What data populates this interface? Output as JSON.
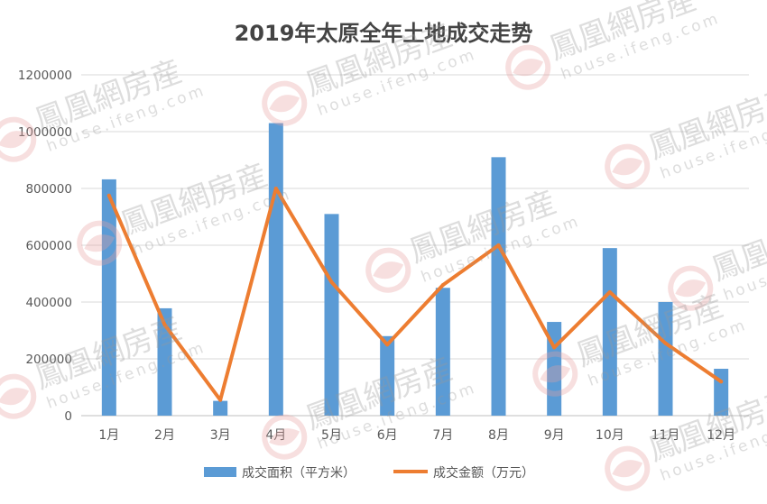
{
  "chart_data": {
    "type": "bar",
    "title": "2019年太原全年土地成交走势",
    "categories": [
      "1月",
      "2月",
      "3月",
      "4月",
      "5月",
      "6月",
      "7月",
      "8月",
      "9月",
      "10月",
      "11月",
      "12月"
    ],
    "series": [
      {
        "name": "成交面积（平方米）",
        "type": "bar",
        "color": "#5b9bd5",
        "values": [
          832000,
          378000,
          52000,
          1030000,
          710000,
          280000,
          450000,
          910000,
          330000,
          590000,
          400000,
          165000
        ]
      },
      {
        "name": "成交金额（万元）",
        "type": "line",
        "color": "#ed7d31",
        "values": [
          775000,
          320000,
          55000,
          800000,
          470000,
          250000,
          460000,
          600000,
          240000,
          435000,
          255000,
          120000
        ]
      }
    ],
    "ylim": [
      0,
      1200000
    ],
    "yticks": [
      0,
      200000,
      400000,
      600000,
      800000,
      1000000,
      1200000
    ],
    "ytick_labels": [
      "0",
      "200000",
      "400000",
      "600000",
      "800000",
      "1000000",
      "1200000"
    ],
    "grid": true,
    "legend_position": "bottom-center"
  },
  "watermark": {
    "text_cn": "鳳凰網房産",
    "text_en": "house.ifeng.com",
    "logo_color": "#e8a0a0"
  }
}
